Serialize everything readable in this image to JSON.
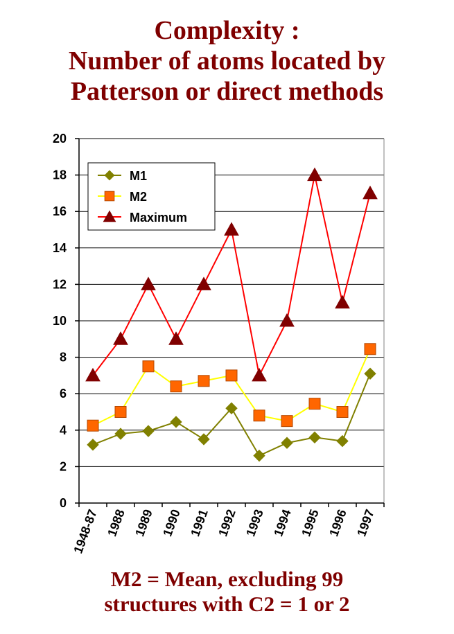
{
  "title": {
    "line1": "Complexity :",
    "line2": "Number of atoms located by",
    "line3": "Patterson or direct methods"
  },
  "footnote": {
    "line1": "M2 = Mean, excluding 99",
    "line2": "structures with C2 = 1 or 2"
  },
  "colors": {
    "title": "#7f0000",
    "M1": "#808000",
    "M2_line": "#ffff00",
    "M2_marker": "#ff6600",
    "Maximum_line": "#ff0000",
    "Maximum_marker": "#800000",
    "grid": "#000000"
  },
  "chart_data": {
    "type": "line",
    "categories": [
      "1948-87",
      "1988",
      "1989",
      "1990",
      "1991",
      "1992",
      "1993",
      "1994",
      "1995",
      "1996",
      "1997"
    ],
    "ylim": [
      0,
      20
    ],
    "yticks": [
      0,
      2,
      4,
      6,
      8,
      10,
      12,
      14,
      16,
      18,
      20
    ],
    "grid": true,
    "legend_position": "top-left",
    "series": [
      {
        "name": "M1",
        "marker": "diamond",
        "values": [
          3.2,
          3.8,
          3.95,
          4.45,
          3.5,
          5.2,
          2.6,
          3.3,
          3.6,
          3.4,
          7.1
        ]
      },
      {
        "name": "M2",
        "marker": "square",
        "values": [
          4.25,
          5.0,
          7.5,
          6.4,
          6.7,
          7.0,
          4.8,
          4.5,
          5.45,
          5.0,
          8.45
        ]
      },
      {
        "name": "Maximum",
        "marker": "triangle",
        "values": [
          7,
          9,
          12,
          9,
          12,
          15,
          7,
          10,
          18,
          11,
          17
        ]
      }
    ]
  }
}
